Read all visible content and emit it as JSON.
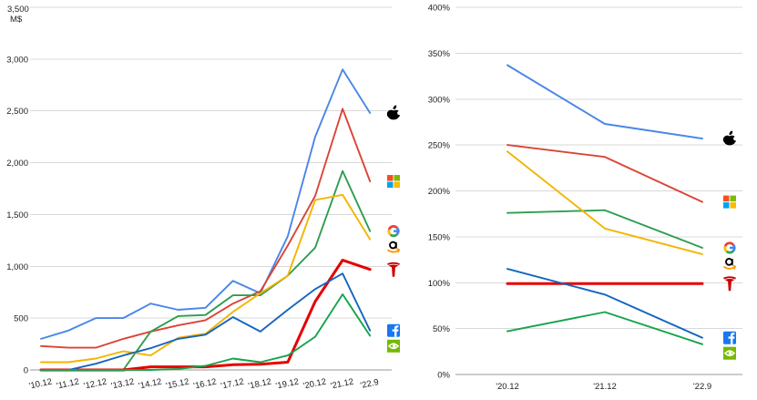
{
  "colors": {
    "apple": "#4a86e8",
    "microsoft": "#db4437",
    "google": "#2e9e4f",
    "amazon": "#f4b400",
    "tesla": "#e60000",
    "meta": "#1565c0",
    "nvidia": "#16a34a"
  },
  "chart_data": [
    {
      "type": "line",
      "title": "",
      "ylabel": "M$",
      "ylim": [
        0,
        3500
      ],
      "yticks": [
        "0",
        "500",
        "1,000",
        "1,500",
        "2,000",
        "2,500",
        "3,000",
        "3,500"
      ],
      "ytick_values": [
        0,
        500,
        1000,
        1500,
        2000,
        2500,
        3000,
        3500
      ],
      "categories": [
        "'10.12",
        "'11.12",
        "'12.12",
        "'13.12",
        "'14.12",
        "'15.12",
        "'16.12",
        "'17.12",
        "'18.12",
        "'19.12",
        "'20.12",
        "'21.12",
        "'22.9"
      ],
      "legend": "icons at right end",
      "grid": true,
      "series": [
        {
          "key": "apple",
          "icon": "apple-icon",
          "values": [
            300,
            380,
            500,
            500,
            640,
            580,
            600,
            860,
            740,
            1290,
            2250,
            2900,
            2480
          ]
        },
        {
          "key": "microsoft",
          "icon": "microsoft-icon",
          "values": [
            230,
            215,
            215,
            300,
            370,
            430,
            480,
            640,
            760,
            1200,
            1680,
            2520,
            1820
          ]
        },
        {
          "key": "google",
          "icon": "google-icon",
          "values": [
            0,
            0,
            0,
            0,
            370,
            520,
            530,
            720,
            720,
            910,
            1180,
            1920,
            1340
          ]
        },
        {
          "key": "amazon",
          "icon": "amazon-icon",
          "values": [
            75,
            75,
            110,
            180,
            140,
            310,
            350,
            560,
            740,
            910,
            1640,
            1690,
            1260
          ]
        },
        {
          "key": "tesla",
          "icon": "tesla-icon",
          "values": [
            0,
            0,
            0,
            0,
            30,
            30,
            30,
            50,
            55,
            75,
            660,
            1060,
            970
          ]
        },
        {
          "key": "meta",
          "icon": "facebook-icon",
          "values": [
            0,
            0,
            60,
            140,
            210,
            300,
            340,
            510,
            370,
            580,
            780,
            930,
            380
          ]
        },
        {
          "key": "nvidia",
          "icon": "nvidia-icon",
          "values": [
            0,
            0,
            0,
            0,
            0,
            10,
            40,
            110,
            75,
            140,
            320,
            730,
            330
          ]
        }
      ]
    },
    {
      "type": "line",
      "title": "",
      "ylim": [
        0,
        400
      ],
      "yticks": [
        "0%",
        "50%",
        "100%",
        "150%",
        "200%",
        "250%",
        "300%",
        "350%",
        "400%"
      ],
      "ytick_values": [
        0,
        50,
        100,
        150,
        200,
        250,
        300,
        350,
        400
      ],
      "categories": [
        "'20.12",
        "'21.12",
        "'22.9"
      ],
      "legend": "icons at right end",
      "grid": true,
      "series": [
        {
          "key": "apple",
          "icon": "apple-icon",
          "values": [
            337,
            273,
            257
          ]
        },
        {
          "key": "microsoft",
          "icon": "microsoft-icon",
          "values": [
            250,
            237,
            188
          ]
        },
        {
          "key": "google",
          "icon": "google-icon",
          "values": [
            176,
            179,
            138
          ]
        },
        {
          "key": "amazon",
          "icon": "amazon-icon",
          "values": [
            243,
            159,
            131
          ]
        },
        {
          "key": "tesla",
          "icon": "tesla-icon",
          "values": [
            99,
            99,
            99
          ]
        },
        {
          "key": "meta",
          "icon": "facebook-icon",
          "values": [
            115,
            87,
            40
          ]
        },
        {
          "key": "nvidia",
          "icon": "nvidia-icon",
          "values": [
            47,
            68,
            33
          ]
        }
      ]
    }
  ]
}
